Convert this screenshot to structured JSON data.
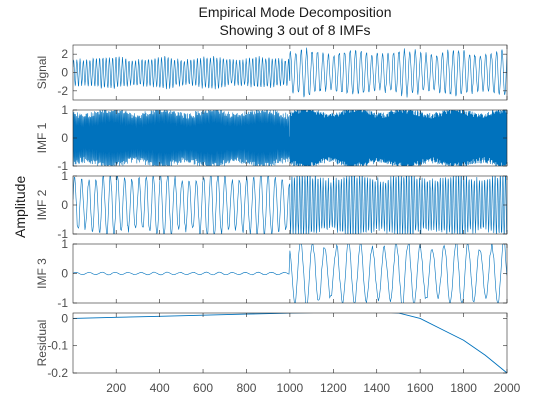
{
  "figure": {
    "title": "Empirical Mode Decomposition",
    "subtitle": "Showing 3 out of 8 IMFs",
    "ylabel": "Amplitude"
  },
  "chart_data": {
    "type": "line",
    "line_color": "#0072BD",
    "x_range": [
      1,
      2000
    ],
    "x_ticks": [
      200,
      400,
      600,
      800,
      1000,
      1200,
      1400,
      1600,
      1800,
      2000
    ],
    "panels": [
      {
        "name": "signal",
        "ylabel": "Signal",
        "ylim": [
          -3,
          3
        ],
        "yticks": [
          -2,
          0,
          2
        ],
        "description_segments": [
          {
            "x_start": 1,
            "x_end": 1000,
            "amplitude": 1.5,
            "period": 15
          },
          {
            "x_start": 1000,
            "x_end": 2000,
            "amplitude": 2.2,
            "period": 25
          }
        ]
      },
      {
        "name": "imf1",
        "ylabel": "IMF 1",
        "ylim": [
          -1,
          1
        ],
        "yticks": [
          -1,
          0,
          1
        ],
        "description_segments": [
          {
            "x_start": 1,
            "x_end": 1000,
            "amplitude": 0.9,
            "period": 4
          },
          {
            "x_start": 1000,
            "x_end": 2000,
            "amplitude": 1.0,
            "period": 3
          }
        ]
      },
      {
        "name": "imf2",
        "ylabel": "IMF 2",
        "ylim": [
          -1,
          1
        ],
        "yticks": [
          -1,
          0,
          1
        ],
        "description_segments": [
          {
            "x_start": 1,
            "x_end": 1000,
            "amplitude": 0.95,
            "period": 33
          },
          {
            "x_start": 1000,
            "x_end": 2000,
            "amplitude": 0.95,
            "period": 12
          }
        ]
      },
      {
        "name": "imf3",
        "ylabel": "IMF 3",
        "ylim": [
          -1,
          1
        ],
        "yticks": [
          -1,
          0,
          1
        ],
        "description_segments": [
          {
            "x_start": 1,
            "x_end": 1000,
            "amplitude": 0.04,
            "period": 60
          },
          {
            "x_start": 1000,
            "x_end": 2000,
            "amplitude": 0.98,
            "period": 55
          }
        ]
      },
      {
        "name": "residual",
        "ylabel": "Residual",
        "ylim": [
          -0.2,
          0.02
        ],
        "yticks": [
          -0.2,
          -0.1,
          0
        ],
        "points": [
          [
            1,
            0.0
          ],
          [
            200,
            0.004
          ],
          [
            400,
            0.008
          ],
          [
            600,
            0.012
          ],
          [
            800,
            0.016
          ],
          [
            1000,
            0.02
          ],
          [
            1200,
            0.023
          ],
          [
            1400,
            0.025
          ],
          [
            1500,
            0.02
          ],
          [
            1600,
            0.0
          ],
          [
            1700,
            -0.04
          ],
          [
            1800,
            -0.08
          ],
          [
            1900,
            -0.135
          ],
          [
            2000,
            -0.2
          ]
        ]
      }
    ]
  }
}
